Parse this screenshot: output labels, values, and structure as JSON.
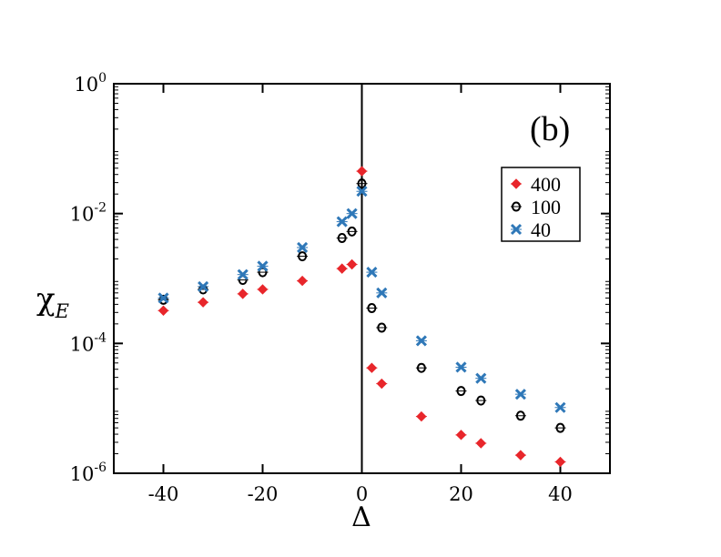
{
  "chart_data": {
    "type": "scatter",
    "title": "",
    "xlabel": "Δ",
    "ylabel": "χ",
    "ylabel_subscript": "E",
    "yscale": "log",
    "xlim": [
      -50,
      50
    ],
    "ylim": [
      1e-06,
      1
    ],
    "x_ticks": [
      -40,
      -20,
      0,
      20,
      40
    ],
    "x_tick_labels": [
      "-40",
      "-20",
      "0",
      "20",
      "40"
    ],
    "y_ticks": [
      {
        "value": 1e-06,
        "base": "10",
        "exp": "-6"
      },
      {
        "value": 0.0001,
        "base": "10",
        "exp": "-4"
      },
      {
        "value": 0.01,
        "base": "10",
        "exp": "-2"
      },
      {
        "value": 1,
        "base": "10",
        "exp": "0"
      }
    ],
    "vertical_line_x": 0,
    "annotation": "(b)",
    "legend_position": "upper-right",
    "series": [
      {
        "name": "400",
        "marker": "diamond",
        "color": "#e8262b",
        "points": [
          [
            -40,
            0.00032
          ],
          [
            -32,
            0.00043
          ],
          [
            -24,
            0.00058
          ],
          [
            -20,
            0.00068
          ],
          [
            -12,
            0.00092
          ],
          [
            -4,
            0.00142
          ],
          [
            -2,
            0.00165
          ],
          [
            0,
            0.045
          ],
          [
            2,
            4.2e-05
          ],
          [
            4,
            2.4e-05
          ],
          [
            12,
            7.5e-06
          ],
          [
            20,
            3.9e-06
          ],
          [
            24,
            2.9e-06
          ],
          [
            32,
            1.9e-06
          ],
          [
            40,
            1.5e-06
          ]
        ]
      },
      {
        "name": "100",
        "marker": "circle-open",
        "color": "#000000",
        "points": [
          [
            -40,
            0.00047
          ],
          [
            -32,
            0.00068
          ],
          [
            -24,
            0.00095
          ],
          [
            -20,
            0.00125
          ],
          [
            -12,
            0.0022
          ],
          [
            -4,
            0.0042
          ],
          [
            -2,
            0.0053
          ],
          [
            0,
            0.029
          ],
          [
            2,
            0.00035
          ],
          [
            4,
            0.000175
          ],
          [
            12,
            4.2e-05
          ],
          [
            20,
            1.85e-05
          ],
          [
            24,
            1.32e-05
          ],
          [
            32,
            7.7e-06
          ],
          [
            40,
            5e-06
          ]
        ]
      },
      {
        "name": "40",
        "marker": "x",
        "color": "#2f78b8",
        "points": [
          [
            -40,
            0.0005
          ],
          [
            -32,
            0.00075
          ],
          [
            -24,
            0.00115
          ],
          [
            -20,
            0.00155
          ],
          [
            -12,
            0.003
          ],
          [
            -4,
            0.0075
          ],
          [
            -2,
            0.01
          ],
          [
            0,
            0.022
          ],
          [
            2,
            0.00125
          ],
          [
            4,
            0.0006
          ],
          [
            12,
            0.00011
          ],
          [
            20,
            4.3e-05
          ],
          [
            24,
            2.9e-05
          ],
          [
            32,
            1.65e-05
          ],
          [
            40,
            1.03e-05
          ]
        ]
      }
    ]
  }
}
